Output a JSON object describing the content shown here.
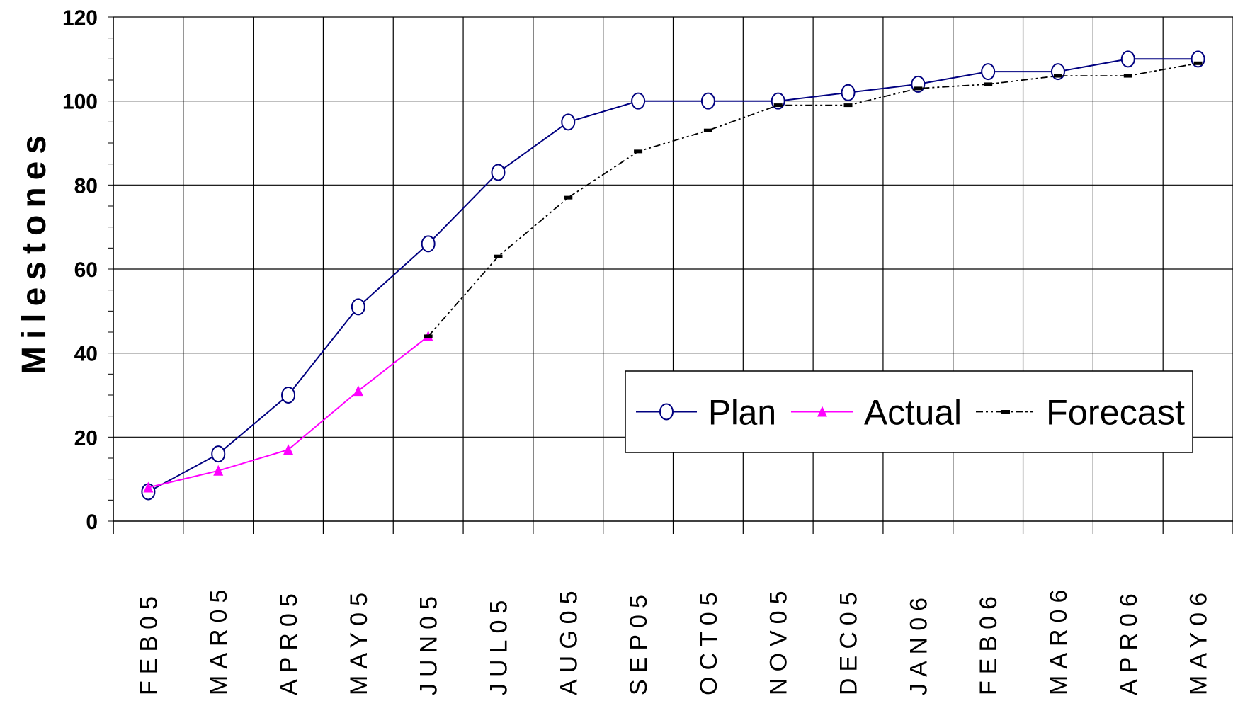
{
  "chart_data": {
    "type": "line",
    "ylabel": "Milestones",
    "xlabel": "",
    "ylim": [
      0,
      120
    ],
    "yticks": [
      0,
      20,
      40,
      60,
      80,
      100,
      120
    ],
    "grid": true,
    "legend_position": "bottom-right",
    "categories": [
      "FEB05",
      "MAR05",
      "APR05",
      "MAY05",
      "JUN05",
      "JUL05",
      "AUG05",
      "SEP05",
      "OCT05",
      "NOV05",
      "DEC05",
      "JAN06",
      "FEB06",
      "MAR06",
      "APR06",
      "MAY06"
    ],
    "series": [
      {
        "name": "Plan",
        "color": "#000080",
        "marker": "circle",
        "values": [
          7,
          16,
          30,
          51,
          66,
          83,
          95,
          100,
          100,
          100,
          102,
          104,
          107,
          107,
          110,
          110
        ]
      },
      {
        "name": "Actual",
        "color": "#ff00ff",
        "marker": "triangle",
        "values": [
          8,
          12,
          17,
          31,
          44,
          null,
          null,
          null,
          null,
          null,
          null,
          null,
          null,
          null,
          null,
          null
        ]
      },
      {
        "name": "Forecast",
        "color": "#000000",
        "marker": "dash",
        "values": [
          null,
          null,
          null,
          null,
          44,
          63,
          77,
          88,
          93,
          99,
          99,
          103,
          104,
          106,
          106,
          109
        ]
      }
    ]
  }
}
